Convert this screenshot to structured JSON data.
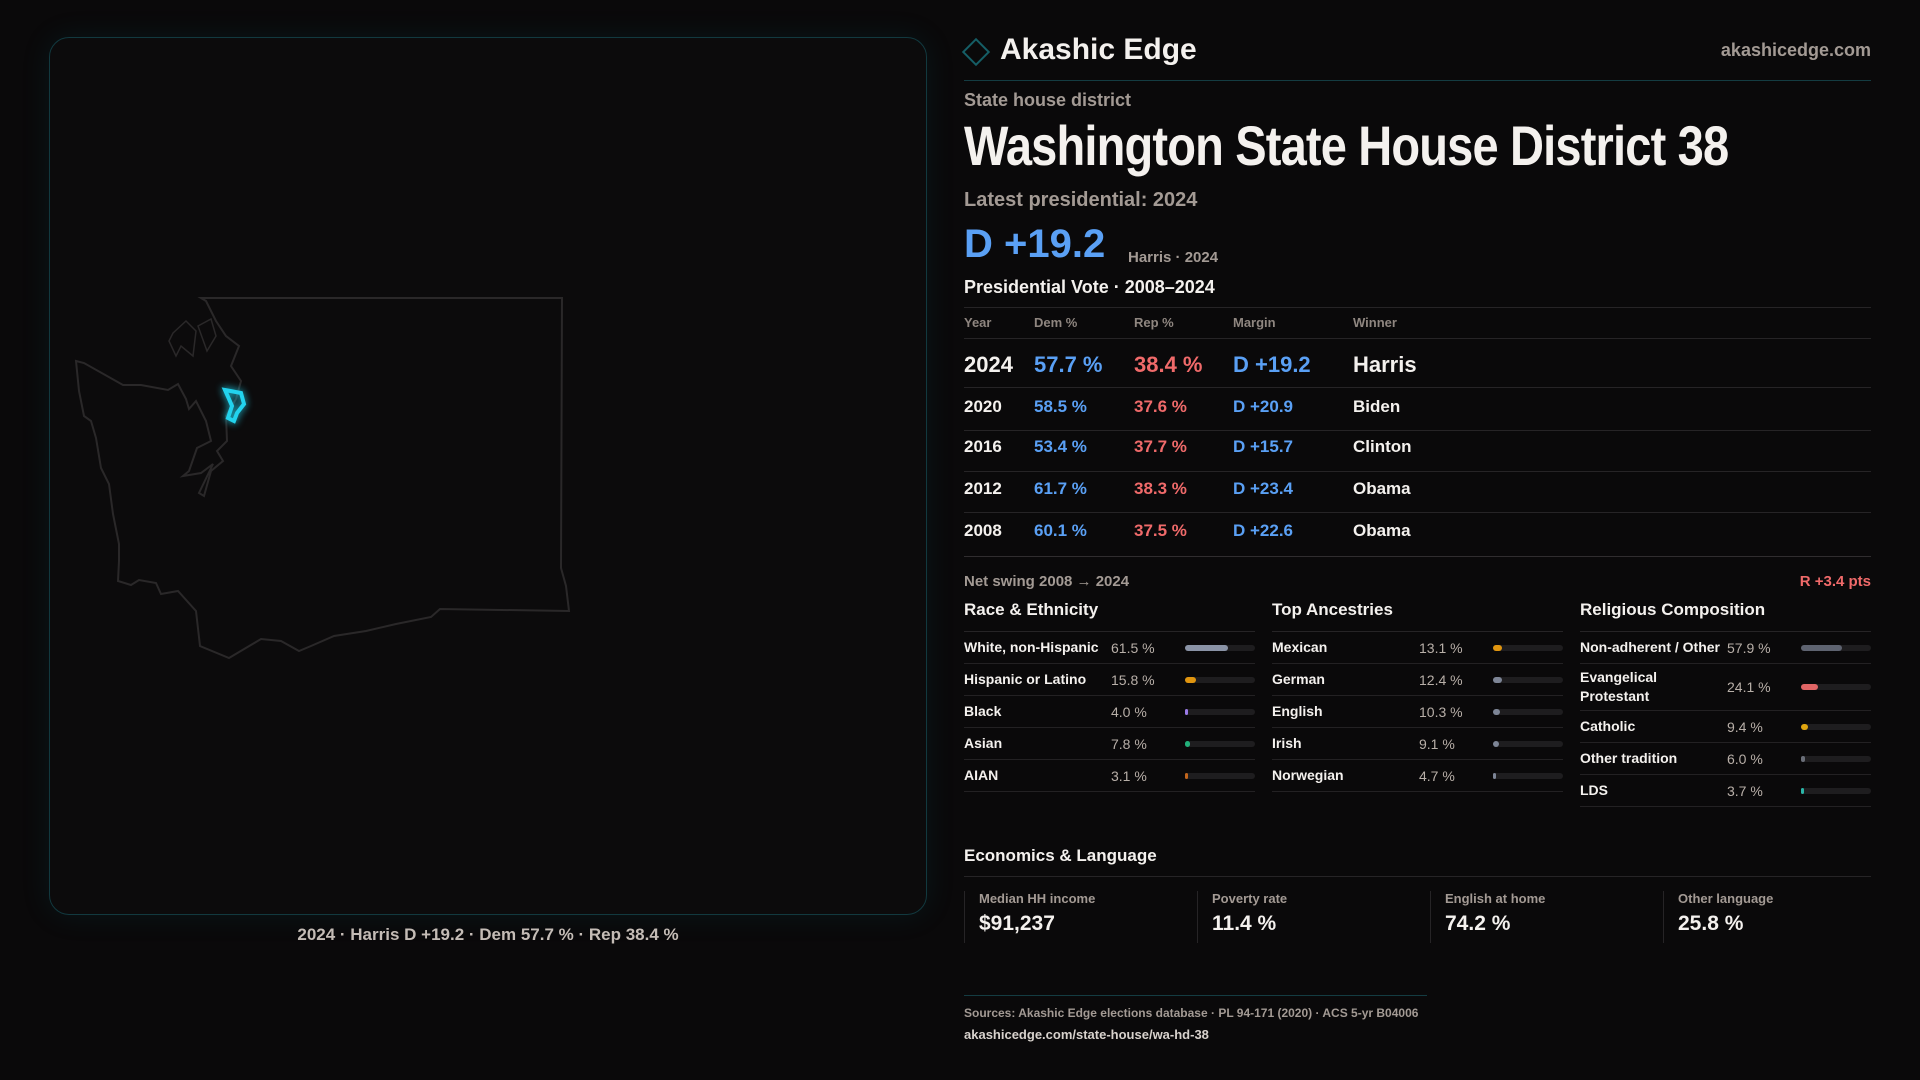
{
  "brand": {
    "name": "Akashic Edge",
    "site": "akashicedge.com"
  },
  "header": {
    "kicker": "State house district",
    "title": "Washington State House District 38",
    "latest": "Latest presidential: 2024",
    "margin": "D +19.2",
    "margin_sub": "Harris · 2024"
  },
  "table": {
    "title": "Presidential Vote · 2008–2024",
    "columns": [
      "Year",
      "Dem %",
      "Rep %",
      "Margin",
      "Winner"
    ],
    "rows": [
      {
        "year": "2024",
        "dem": "57.7 %",
        "rep": "38.4 %",
        "margin": "D +19.2",
        "winner": "Harris"
      },
      {
        "year": "2020",
        "dem": "58.5 %",
        "rep": "37.6 %",
        "margin": "D +20.9",
        "winner": "Biden"
      },
      {
        "year": "2016",
        "dem": "53.4 %",
        "rep": "37.7 %",
        "margin": "D +15.7",
        "winner": "Clinton"
      },
      {
        "year": "2012",
        "dem": "61.7 %",
        "rep": "38.3 %",
        "margin": "D +23.4",
        "winner": "Obama"
      },
      {
        "year": "2008",
        "dem": "60.1 %",
        "rep": "37.5 %",
        "margin": "D +22.6",
        "winner": "Obama"
      }
    ]
  },
  "swing": {
    "label": "Net swing 2008 → 2024",
    "value": "R +3.4 pts"
  },
  "sections": [
    {
      "title": "Race & Ethnicity",
      "rows": [
        {
          "label": "White, non-Hispanic",
          "value": "61.5 %",
          "pct": 61.5,
          "color": "#8a93a6"
        },
        {
          "label": "Hispanic or Latino",
          "value": "15.8 %",
          "pct": 15.8,
          "color": "#e0950f"
        },
        {
          "label": "Black",
          "value": "4.0 %",
          "pct": 4.0,
          "color": "#9b7be8"
        },
        {
          "label": "Asian",
          "value": "7.8 %",
          "pct": 7.8,
          "color": "#22b07a"
        },
        {
          "label": "AIAN",
          "value": "3.1 %",
          "pct": 3.1,
          "color": "#c2651c"
        }
      ]
    },
    {
      "title": "Top Ancestries",
      "rows": [
        {
          "label": "Mexican",
          "value": "13.1 %",
          "pct": 13.1,
          "color": "#e0950f"
        },
        {
          "label": "German",
          "value": "12.4 %",
          "pct": 12.4,
          "color": "#7d8596"
        },
        {
          "label": "English",
          "value": "10.3 %",
          "pct": 10.3,
          "color": "#7d8596"
        },
        {
          "label": "Irish",
          "value": "9.1 %",
          "pct": 9.1,
          "color": "#7d8596"
        },
        {
          "label": "Norwegian",
          "value": "4.7 %",
          "pct": 4.7,
          "color": "#7d8596"
        }
      ]
    },
    {
      "title": "Religious Composition",
      "rows": [
        {
          "label": "Non-adherent / Other",
          "value": "57.9 %",
          "pct": 57.9,
          "color": "#5e6370"
        },
        {
          "label": "Evangelical Protestant",
          "value": "24.1 %",
          "pct": 24.1,
          "color": "#e06565"
        },
        {
          "label": "Catholic",
          "value": "9.4 %",
          "pct": 9.4,
          "color": "#e0a50f"
        },
        {
          "label": "Other tradition",
          "value": "6.0 %",
          "pct": 6.0,
          "color": "#6a6e78"
        },
        {
          "label": "LDS",
          "value": "3.7 %",
          "pct": 3.7,
          "color": "#2bb5a8"
        }
      ]
    }
  ],
  "economics": {
    "title": "Economics & Language",
    "cards": [
      {
        "label": "Median HH income",
        "value": "$91,237"
      },
      {
        "label": "Poverty rate",
        "value": "11.4 %"
      },
      {
        "label": "English at home",
        "value": "74.2 %"
      },
      {
        "label": "Other language",
        "value": "25.8 %"
      }
    ]
  },
  "footer": {
    "sources": "Sources: Akashic Edge elections database · PL 94-171 (2020) · ACS 5-yr B04006",
    "url": "akashicedge.com/state-house/wa-hd-38"
  },
  "map": {
    "caption": "2024 · Harris D +19.2 · Dem 57.7 % · Rep 38.4 %",
    "highlight_color": "#22d3ee"
  }
}
